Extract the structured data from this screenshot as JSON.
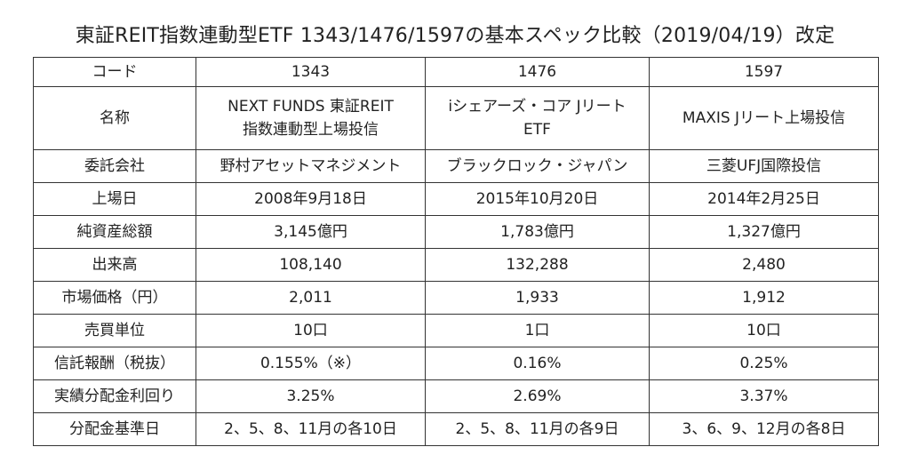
{
  "title": "東証REIT指数連動型ETF 1343/1476/1597の基本スペック比較（2019/04/19）改定",
  "table": {
    "header": [
      "コード",
      "1343",
      "1476",
      "1597"
    ],
    "name": {
      "label": "名称",
      "c1": [
        "NEXT FUNDS 東証REIT",
        "指数連動型上場投信"
      ],
      "c2": [
        "iシェアーズ・コア Jリート",
        "ETF"
      ],
      "c3": "MAXIS Jリート上場投信"
    },
    "rows": [
      {
        "label": "委託会社",
        "values": [
          "野村アセットマネジメント",
          "ブラックロック・ジャパン",
          "三菱UFJ国際投信"
        ]
      },
      {
        "label": "上場日",
        "values": [
          "2008年9月18日",
          "2015年10月20日",
          "2014年2月25日"
        ]
      },
      {
        "label": "純資産総額",
        "values": [
          "3,145億円",
          "1,783億円",
          "1,327億円"
        ]
      },
      {
        "label": "出来高",
        "values": [
          "108,140",
          "132,288",
          "2,480"
        ]
      },
      {
        "label": "市場価格（円）",
        "values": [
          "2,011",
          "1,933",
          "1,912"
        ]
      },
      {
        "label": "売買単位",
        "values": [
          "10口",
          "1口",
          "10口"
        ]
      },
      {
        "label": "信託報酬（税抜）",
        "values": [
          "0.155%（※）",
          "0.16%",
          "0.25%"
        ]
      },
      {
        "label": "実績分配金利回り",
        "values": [
          "3.25%",
          "2.69%",
          "3.37%"
        ]
      },
      {
        "label": "分配金基準日",
        "values": [
          "2、5、8、11月の各10日",
          "2、5、8、11月の各9日",
          "3、6、9、12月の各8日"
        ]
      }
    ]
  }
}
